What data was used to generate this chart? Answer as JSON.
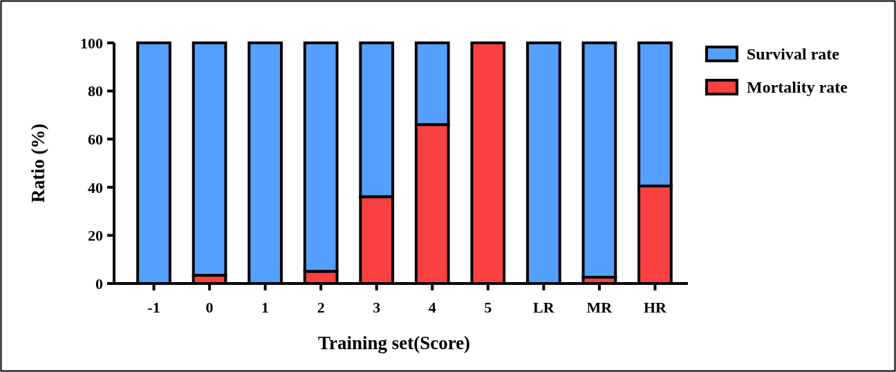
{
  "chart_data": {
    "type": "bar",
    "stacked": true,
    "xlabel": "Training set(Score)",
    "ylabel": "Ratio (%)",
    "categories": [
      "-1",
      "0",
      "1",
      "2",
      "3",
      "4",
      "5",
      "LR",
      "MR",
      "HR"
    ],
    "series": [
      {
        "name": "Mortality rate",
        "color": "#fa4141",
        "values": [
          0,
          3.4,
          0,
          5,
          36,
          66,
          100,
          0,
          2.6,
          40.5
        ]
      },
      {
        "name": "Survival rate",
        "color": "#559ffd",
        "values": [
          100,
          96.6,
          100,
          95,
          64,
          34,
          0,
          100,
          97.4,
          59.5
        ]
      }
    ],
    "ylim": [
      0,
      100
    ],
    "yticks": [
      0,
      20,
      40,
      60,
      80,
      100
    ],
    "legend": "top right"
  }
}
